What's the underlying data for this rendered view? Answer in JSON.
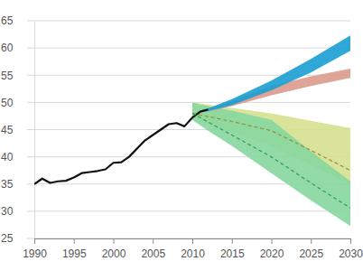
{
  "chart_data": {
    "type": "line",
    "x": [
      1990,
      1991,
      1992,
      1993,
      1994,
      1995,
      1996,
      1997,
      1998,
      1999,
      2000,
      2001,
      2002,
      2003,
      2004,
      2005,
      2006,
      2007,
      2008,
      2009,
      2010,
      2011,
      2012,
      2015,
      2020,
      2025,
      2030
    ],
    "xlim": [
      1990,
      2030
    ],
    "xticks": [
      1990,
      1995,
      2000,
      2005,
      2010,
      2015,
      2020,
      2025,
      2030
    ],
    "ylim": [
      25,
      65
    ],
    "yticks": [
      25,
      30,
      35,
      40,
      45,
      50,
      55,
      60,
      65
    ],
    "grid": true,
    "series": [
      {
        "type": "area",
        "color": "#d6e08f",
        "values": [
          null,
          null,
          null,
          null,
          null,
          null,
          null,
          null,
          null,
          null,
          null,
          null,
          null,
          null,
          null,
          null,
          null,
          null,
          null,
          null,
          50,
          49.8,
          49.6,
          49,
          48,
          46.6,
          45.3
        ],
        "lower": [
          null,
          null,
          null,
          null,
          null,
          null,
          null,
          null,
          null,
          null,
          null,
          null,
          null,
          null,
          null,
          null,
          null,
          null,
          null,
          null,
          47,
          46.5,
          46,
          44.5,
          42,
          38.5,
          35
        ]
      },
      {
        "type": "area",
        "color": "#86d69e",
        "values": [
          null,
          null,
          null,
          null,
          null,
          null,
          null,
          null,
          null,
          null,
          null,
          null,
          null,
          null,
          null,
          null,
          null,
          null,
          null,
          null,
          50,
          49.6,
          49.3,
          48.5,
          46.8,
          41,
          35.5
        ],
        "lower": [
          null,
          null,
          null,
          null,
          null,
          null,
          null,
          null,
          null,
          null,
          null,
          null,
          null,
          null,
          null,
          null,
          null,
          null,
          null,
          null,
          46.8,
          45.8,
          44.8,
          42,
          37,
          32,
          27.3
        ]
      },
      {
        "type": "area",
        "color": "#d99a8c",
        "values": [
          null,
          null,
          null,
          null,
          null,
          null,
          null,
          null,
          null,
          null,
          null,
          null,
          null,
          null,
          null,
          null,
          null,
          null,
          null,
          null,
          null,
          48.4,
          48.7,
          50.3,
          53,
          54.8,
          56.2
        ],
        "lower": [
          null,
          null,
          null,
          null,
          null,
          null,
          null,
          null,
          null,
          null,
          null,
          null,
          null,
          null,
          null,
          null,
          null,
          null,
          null,
          null,
          null,
          48.2,
          48.3,
          49.3,
          51.3,
          53,
          54.5
        ]
      },
      {
        "type": "area",
        "color": "#1a9fd3",
        "values": [
          null,
          null,
          null,
          null,
          null,
          null,
          null,
          null,
          null,
          null,
          null,
          null,
          null,
          null,
          null,
          null,
          null,
          null,
          null,
          null,
          null,
          48.5,
          48.9,
          50.6,
          54,
          58,
          62.3
        ],
        "lower": [
          null,
          null,
          null,
          null,
          null,
          null,
          null,
          null,
          null,
          null,
          null,
          null,
          null,
          null,
          null,
          null,
          null,
          null,
          null,
          null,
          null,
          48.2,
          48.4,
          49.5,
          52.2,
          55.5,
          59.5
        ]
      },
      {
        "type": "line",
        "color": "#111111",
        "values": [
          35,
          36,
          35.2,
          35.5,
          35.6,
          36.2,
          37,
          37.2,
          37.4,
          37.7,
          38.9,
          39,
          40,
          41.5,
          43,
          44,
          45,
          46,
          46.2,
          45.6,
          47.2,
          48.3,
          48.7,
          null,
          null,
          null,
          null
        ]
      },
      {
        "type": "line",
        "color": "#8f8f3e",
        "line_style": "dashed",
        "values": [
          null,
          null,
          null,
          null,
          null,
          null,
          null,
          null,
          null,
          null,
          null,
          null,
          null,
          null,
          null,
          null,
          null,
          null,
          null,
          null,
          48,
          47.7,
          47.4,
          46.5,
          44.8,
          41.2,
          37.5
        ]
      },
      {
        "type": "line",
        "color": "#2f9c55",
        "line_style": "dashed",
        "values": [
          null,
          null,
          null,
          null,
          null,
          null,
          null,
          null,
          null,
          null,
          null,
          null,
          null,
          null,
          null,
          null,
          null,
          null,
          null,
          null,
          48,
          47.2,
          46.4,
          44,
          40,
          35.2,
          30.6
        ]
      }
    ]
  }
}
